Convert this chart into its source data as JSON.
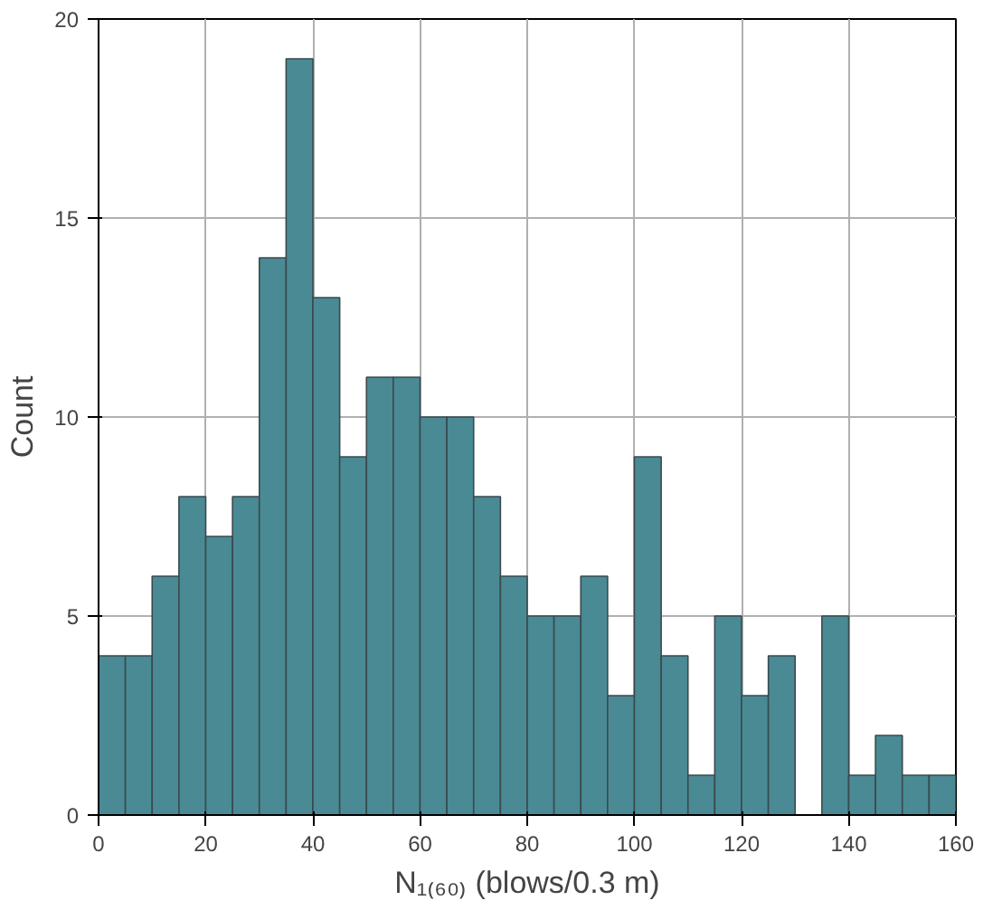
{
  "chart_data": {
    "type": "histogram",
    "xlabel": "N₁₍₆₀₎ (blows/0.3 m)",
    "ylabel": "Count",
    "bins": [
      0,
      5,
      10,
      15,
      20,
      25,
      30,
      35,
      40,
      45,
      50,
      55,
      60,
      65,
      70,
      75,
      80,
      85,
      90,
      95,
      100,
      105,
      110,
      115,
      120,
      125,
      130,
      135,
      140,
      145,
      150,
      155,
      160
    ],
    "values": [
      4,
      4,
      6,
      8,
      7,
      8,
      14,
      19,
      13,
      9,
      11,
      11,
      10,
      10,
      8,
      6,
      5,
      5,
      6,
      3,
      9,
      4,
      1,
      5,
      3,
      4,
      0,
      5,
      1,
      2,
      1,
      1
    ],
    "color": "#4a8a94",
    "xlim": [
      0,
      160
    ],
    "ylim": [
      0,
      20
    ],
    "xticks": [
      0,
      20,
      40,
      60,
      80,
      100,
      120,
      140,
      160
    ],
    "yticks": [
      0,
      5,
      10,
      15,
      20
    ],
    "grid": true
  }
}
